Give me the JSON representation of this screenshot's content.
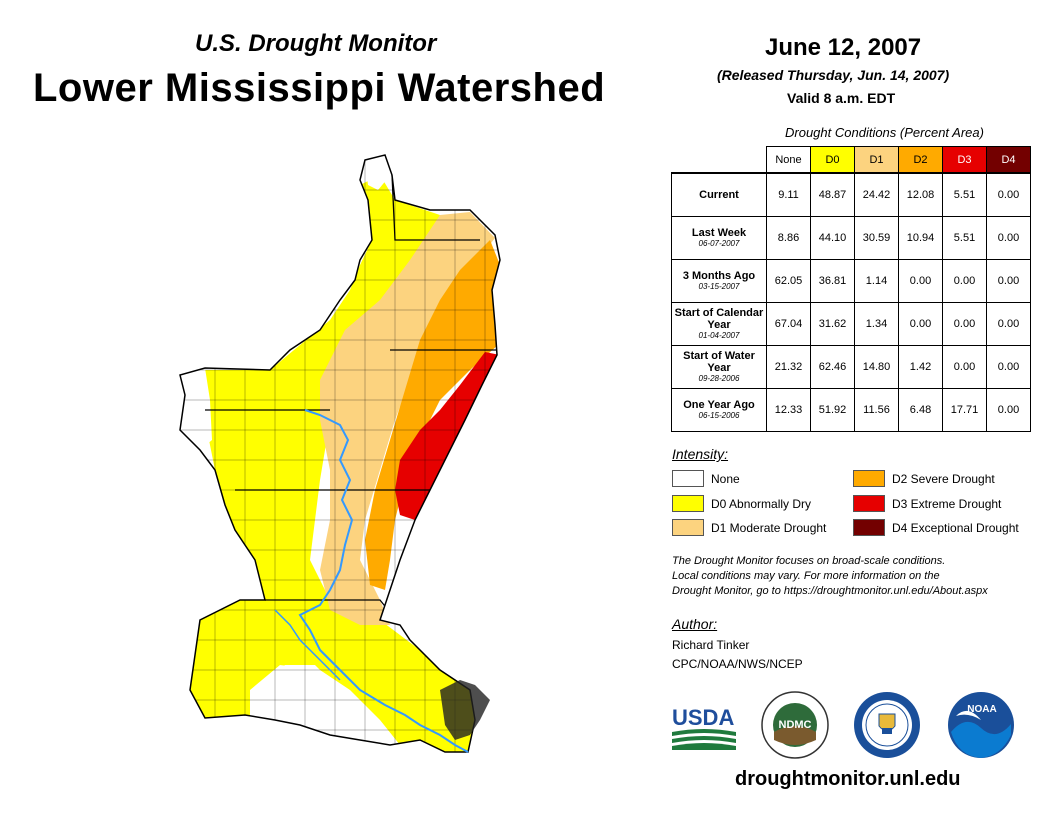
{
  "header": {
    "subtitle": "U.S. Drought Monitor",
    "title": "Lower Mississippi Watershed"
  },
  "date_block": {
    "date": "June 12, 2007",
    "released": "(Released Thursday, Jun. 14, 2007)",
    "valid": "Valid 8 a.m. EDT"
  },
  "table": {
    "caption": "Drought Conditions (Percent Area)",
    "columns": [
      {
        "label": "None",
        "color": "#ffffff",
        "text_color": "#000000"
      },
      {
        "label": "D0",
        "color": "#ffff00",
        "text_color": "#000000"
      },
      {
        "label": "D1",
        "color": "#fcd37f",
        "text_color": "#000000"
      },
      {
        "label": "D2",
        "color": "#ffaa00",
        "text_color": "#000000"
      },
      {
        "label": "D3",
        "color": "#e60000",
        "text_color": "#ffffff"
      },
      {
        "label": "D4",
        "color": "#730000",
        "text_color": "#ffffff"
      }
    ],
    "rows": [
      {
        "label": "Current",
        "date": "",
        "values": [
          "9.11",
          "48.87",
          "24.42",
          "12.08",
          "5.51",
          "0.00"
        ]
      },
      {
        "label": "Last Week",
        "date": "06-07-2007",
        "values": [
          "8.86",
          "44.10",
          "30.59",
          "10.94",
          "5.51",
          "0.00"
        ]
      },
      {
        "label": "3 Months Ago",
        "date": "03-15-2007",
        "values": [
          "62.05",
          "36.81",
          "1.14",
          "0.00",
          "0.00",
          "0.00"
        ]
      },
      {
        "label": "Start of Calendar Year",
        "date": "01-04-2007",
        "values": [
          "67.04",
          "31.62",
          "1.34",
          "0.00",
          "0.00",
          "0.00"
        ]
      },
      {
        "label": "Start of Water Year",
        "date": "09-28-2006",
        "values": [
          "21.32",
          "62.46",
          "14.80",
          "1.42",
          "0.00",
          "0.00"
        ]
      },
      {
        "label": "One Year Ago",
        "date": "06-15-2006",
        "values": [
          "12.33",
          "51.92",
          "11.56",
          "6.48",
          "17.71",
          "0.00"
        ]
      }
    ]
  },
  "legend": {
    "heading": "Intensity:",
    "items": [
      {
        "label": "None",
        "color": "#ffffff"
      },
      {
        "label": "D0 Abnormally Dry",
        "color": "#ffff00"
      },
      {
        "label": "D1 Moderate Drought",
        "color": "#fcd37f"
      },
      {
        "label": "D2 Severe Drought",
        "color": "#ffaa00"
      },
      {
        "label": "D3 Extreme Drought",
        "color": "#e60000"
      },
      {
        "label": "D4 Exceptional Drought",
        "color": "#730000"
      }
    ]
  },
  "note": {
    "line1": "The Drought Monitor focuses on broad-scale conditions.",
    "line2": "Local conditions may vary. For more information on the",
    "line3": "Drought Monitor, go to https://droughtmonitor.unl.edu/About.aspx"
  },
  "author": {
    "heading": "Author:",
    "name": "Richard Tinker",
    "org": "CPC/NOAA/NWS/NCEP"
  },
  "logos": {
    "usda": "USDA",
    "ndmc": "NDMC",
    "noaa": "NOAA"
  },
  "website": "droughtmonitor.unl.edu",
  "colors": {
    "none": "#ffffff",
    "d0": "#ffff00",
    "d1": "#fcd37f",
    "d2": "#ffaa00",
    "d3": "#e60000",
    "d4": "#730000",
    "river": "#3399ff"
  }
}
